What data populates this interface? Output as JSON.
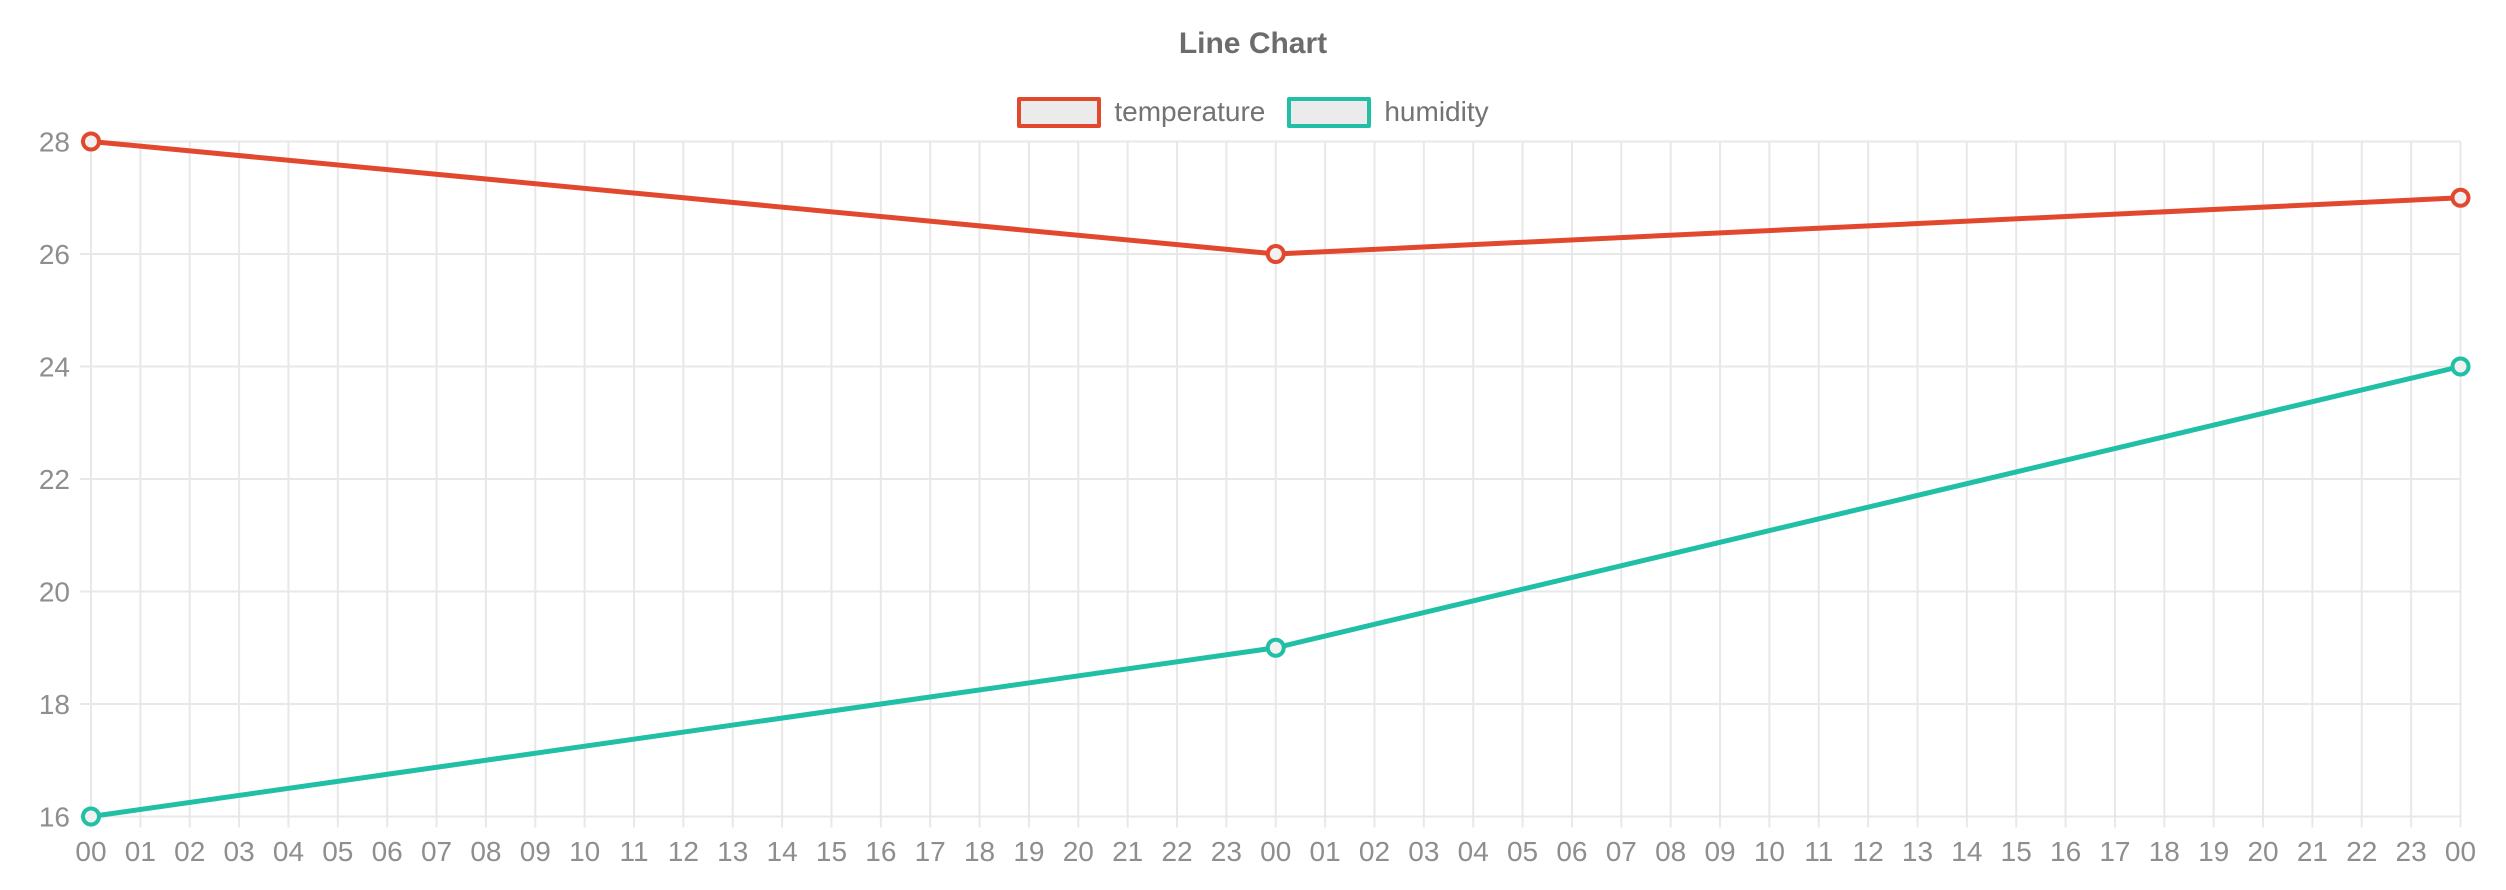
{
  "chart_data": {
    "type": "line",
    "title": "Line Chart",
    "legend_position": "top-center",
    "grid": true,
    "ylim": [
      16,
      28
    ],
    "y_ticks": [
      28,
      26,
      24,
      22,
      20,
      18,
      16
    ],
    "x_tick_labels": [
      "00",
      "01",
      "02",
      "03",
      "04",
      "05",
      "06",
      "07",
      "08",
      "09",
      "10",
      "11",
      "12",
      "13",
      "14",
      "15",
      "16",
      "17",
      "18",
      "19",
      "20",
      "21",
      "22",
      "23",
      "00",
      "01",
      "02",
      "03",
      "04",
      "05",
      "06",
      "07",
      "08",
      "09",
      "10",
      "11",
      "12",
      "13",
      "14",
      "15",
      "16",
      "17",
      "18",
      "19",
      "20",
      "21",
      "22",
      "23",
      "00"
    ],
    "series": [
      {
        "name": "temperature",
        "color": "#e2482e",
        "x_indices": [
          0,
          24,
          48
        ],
        "values": [
          28,
          26,
          27
        ]
      },
      {
        "name": "humidity",
        "color": "#20bfa6",
        "x_indices": [
          0,
          24,
          48
        ],
        "values": [
          16,
          19,
          24
        ]
      }
    ],
    "style": {
      "grid_color": "#e8e8e8",
      "tick_label_color": "#8e8e8e",
      "title_color": "#6c6c6c",
      "legend_text_color": "#737373",
      "legend_swatch_fill": "#ebebeb",
      "point_fill": "#f1f1f1",
      "line_width": 5,
      "point_radius": 8,
      "point_border_width": 4,
      "axis_font_size": 28
    }
  }
}
